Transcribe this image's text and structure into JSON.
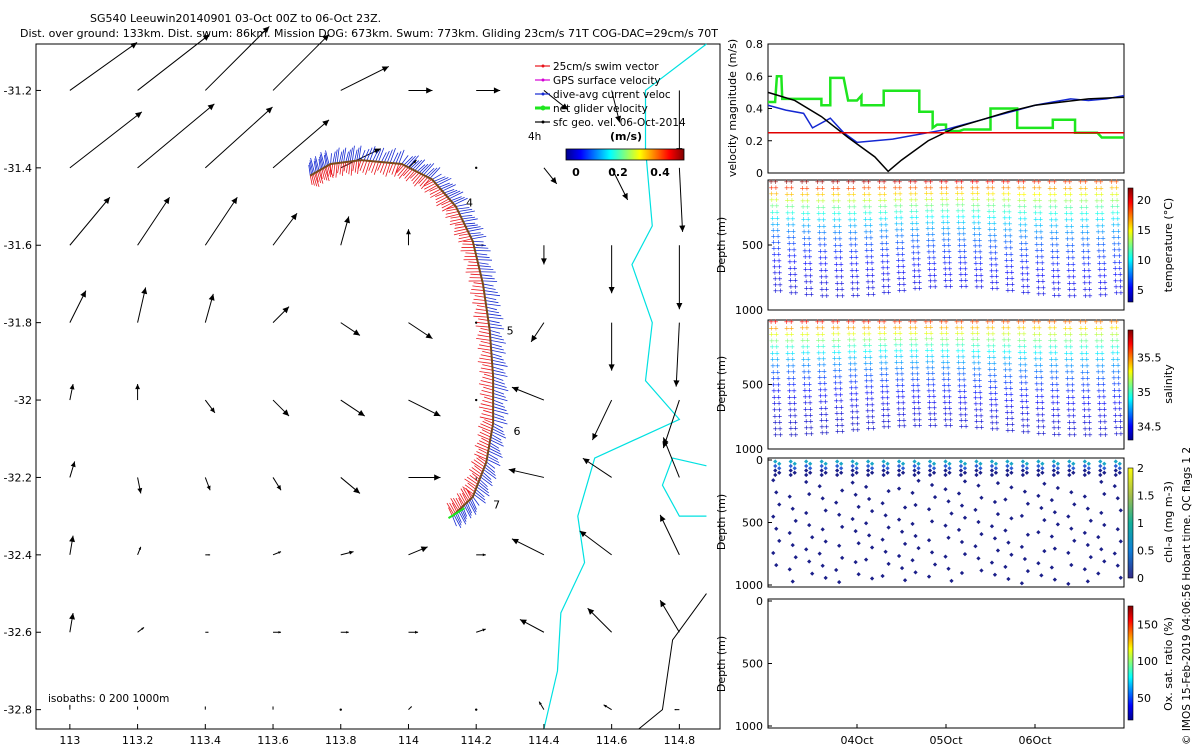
{
  "title": "SG540 Leeuwin20140901 03-Oct 00Z to 06-Oct 23Z.",
  "subtitle": "Dist. over ground: 133km. Dist. swum: 86km. Mission DOG: 673km. Swum: 773km. Gliding 23cm/s 71T COG-DAC=29cm/s 70T",
  "copyright": "© IMOS 15-Feb-2019 04:06:56 Hobart time. QC flags 1  2",
  "colors": {
    "swim": "#e8141b",
    "gps": "#d400d4",
    "dac": "#1428d2",
    "net": "#1ee61e",
    "geo": "#000000",
    "coast": "#00e1e1",
    "track": "#7a4a1a",
    "ref": "#e00000"
  },
  "chart_data": [
    {
      "type": "vector-map",
      "xlim": [
        112.9,
        114.92
      ],
      "ylim": [
        -32.85,
        -31.08
      ],
      "xticks": [
        113,
        113.2,
        113.4,
        113.6,
        113.8,
        114,
        114.2,
        114.4,
        114.6,
        114.8
      ],
      "xtick_labels": [
        "113",
        "113.2",
        "113.4",
        "113.6",
        "113.8",
        "114",
        "114.2",
        "114.4",
        "114.6",
        "114.8"
      ],
      "yticks": [
        -31.2,
        -31.4,
        -31.6,
        -31.8,
        -32,
        -32.2,
        -32.4,
        -32.6,
        -32.8
      ],
      "ytick_labels": [
        "-31.2",
        "-31.4",
        "-31.6",
        "-31.8",
        "-32",
        "-32.2",
        "-32.4",
        "-32.6",
        "-32.8"
      ],
      "legend": {
        "position": "top-right",
        "entries": [
          {
            "label": "25cm/s swim vector",
            "color": "#e8141b"
          },
          {
            "label": "GPS surface velocity",
            "color": "#d400d4"
          },
          {
            "label": "dive-avg current veloc",
            "color": "#1428d2"
          },
          {
            "label": "net glider velocity",
            "color": "#1ee61e"
          },
          {
            "label": "sfc geo. vel. 06-Oct-2014",
            "color": "#000000"
          }
        ]
      },
      "colorbar": {
        "label": "(m/s)",
        "ticks": [
          "0",
          "0.2",
          "0.4"
        ],
        "range": [
          0,
          0.5
        ]
      },
      "time_tag": "4h",
      "isobaths_label": "isobaths: 0   200  1000m",
      "track_day_labels": [
        "4",
        "5",
        "6",
        "7"
      ],
      "track_day_positions": [
        [
          114.17,
          -31.5
        ],
        [
          114.29,
          -31.83
        ],
        [
          114.31,
          -32.09
        ],
        [
          114.25,
          -32.28
        ]
      ],
      "track": [
        [
          113.71,
          -31.42
        ],
        [
          113.77,
          -31.39
        ],
        [
          113.86,
          -31.38
        ],
        [
          113.98,
          -31.39
        ],
        [
          114.07,
          -31.43
        ],
        [
          114.14,
          -31.5
        ],
        [
          114.19,
          -31.59
        ],
        [
          114.22,
          -31.7
        ],
        [
          114.24,
          -31.82
        ],
        [
          114.25,
          -31.94
        ],
        [
          114.25,
          -32.06
        ],
        [
          114.23,
          -32.16
        ],
        [
          114.19,
          -32.25
        ],
        [
          114.13,
          -32.3
        ]
      ],
      "geo_vectors": {
        "lons": [
          113.0,
          113.2,
          113.4,
          113.6,
          113.8,
          114.0,
          114.2,
          114.4,
          114.6,
          114.8
        ],
        "lats": [
          -31.2,
          -31.4,
          -31.6,
          -31.8,
          -32.0,
          -32.2,
          -32.4,
          -32.6,
          -32.8
        ],
        "u": [
          [
            0.42,
            0.45,
            0.4,
            0.35,
            0.3,
            0.15,
            0.15,
            0.15,
            0.05,
            0.0
          ],
          [
            0.45,
            0.48,
            0.42,
            0.35,
            0.25,
            0.05,
            0.0,
            0.08,
            0.1,
            0.02
          ],
          [
            0.25,
            0.2,
            0.2,
            0.15,
            0.05,
            0.0,
            0.05,
            0.0,
            0.0,
            0.0
          ],
          [
            0.1,
            0.05,
            0.05,
            0.1,
            0.12,
            0.15,
            0.0,
            -0.08,
            0.0,
            -0.02
          ],
          [
            0.02,
            0.0,
            0.06,
            0.1,
            0.15,
            0.2,
            0.0,
            -0.2,
            -0.12,
            -0.1
          ],
          [
            0.03,
            0.02,
            0.03,
            0.05,
            0.12,
            0.2,
            0.0,
            -0.22,
            -0.18,
            -0.1
          ],
          [
            0.02,
            0.02,
            0.03,
            0.05,
            0.08,
            0.12,
            0.06,
            -0.2,
            -0.2,
            -0.12
          ],
          [
            0.02,
            0.04,
            0.02,
            0.05,
            0.05,
            0.06,
            0.06,
            -0.15,
            -0.15,
            -0.12
          ],
          [
            0.0,
            0.0,
            0.0,
            0.0,
            0.0,
            0.02,
            0.0,
            -0.03,
            -0.05,
            -0.03
          ]
        ],
        "v": [
          [
            0.3,
            0.35,
            0.4,
            0.35,
            0.15,
            0.0,
            0.0,
            -0.12,
            -0.2,
            -0.4
          ],
          [
            0.35,
            0.4,
            0.38,
            0.3,
            0.12,
            0.05,
            0.0,
            -0.1,
            -0.2,
            -0.4
          ],
          [
            0.3,
            0.3,
            0.3,
            0.2,
            0.18,
            0.1,
            0.0,
            -0.12,
            -0.3,
            -0.4
          ],
          [
            0.2,
            0.22,
            0.18,
            0.1,
            -0.08,
            -0.1,
            0.0,
            -0.12,
            -0.3,
            -0.4
          ],
          [
            0.1,
            0.1,
            -0.08,
            -0.1,
            -0.1,
            -0.1,
            0.0,
            0.08,
            -0.25,
            -0.3
          ],
          [
            0.1,
            -0.1,
            -0.08,
            -0.08,
            -0.1,
            0.0,
            -0.02,
            0.05,
            0.12,
            0.25
          ],
          [
            0.12,
            0.05,
            0.0,
            0.02,
            0.02,
            0.05,
            0.0,
            0.1,
            0.15,
            0.25
          ],
          [
            0.12,
            0.03,
            0.0,
            0.0,
            0.0,
            0.0,
            0.02,
            0.08,
            0.15,
            0.2
          ],
          [
            0.03,
            0.02,
            0.02,
            0.02,
            0.0,
            0.02,
            0.0,
            0.05,
            0.03,
            0.0
          ]
        ]
      }
    },
    {
      "type": "line",
      "ylabel": "velocity magnitude (m/s)",
      "xlim": [
        0,
        4
      ],
      "ylim": [
        0,
        0.8
      ],
      "yticks": [
        0,
        0.2,
        0.4,
        0.6,
        0.8
      ],
      "ytick_labels": [
        "0",
        "0.2",
        "0.4",
        "0.6",
        "0.8"
      ],
      "series": [
        {
          "name": "net glider velocity",
          "color": "#1ee61e",
          "x": [
            0,
            0.08,
            0.1,
            0.15,
            0.16,
            0.6,
            0.6,
            0.7,
            0.7,
            0.85,
            0.9,
            1.0,
            1.05,
            1.05,
            1.3,
            1.3,
            1.5,
            1.7,
            1.7,
            1.85,
            1.85,
            1.9,
            1.95,
            2.0,
            2.0,
            2.15,
            2.2,
            2.5,
            2.5,
            2.8,
            2.8,
            3.0,
            3.2,
            3.2,
            3.45,
            3.45,
            3.7,
            3.75,
            4.0
          ],
          "y": [
            0.44,
            0.44,
            0.6,
            0.6,
            0.46,
            0.46,
            0.42,
            0.42,
            0.59,
            0.59,
            0.45,
            0.45,
            0.48,
            0.42,
            0.42,
            0.51,
            0.51,
            0.51,
            0.38,
            0.38,
            0.28,
            0.3,
            0.3,
            0.3,
            0.26,
            0.26,
            0.27,
            0.27,
            0.4,
            0.4,
            0.28,
            0.28,
            0.28,
            0.33,
            0.33,
            0.25,
            0.25,
            0.22,
            0.22
          ]
        },
        {
          "name": "dive-avg current veloc",
          "color": "#1428d2",
          "x": [
            0,
            0.2,
            0.4,
            0.5,
            0.7,
            0.85,
            1.0,
            1.2,
            1.4,
            1.6,
            1.8,
            2.0,
            2.2,
            2.4,
            2.6,
            2.8,
            3.0,
            3.2,
            3.4,
            3.6,
            3.8,
            4.0
          ],
          "y": [
            0.42,
            0.39,
            0.37,
            0.28,
            0.34,
            0.25,
            0.19,
            0.2,
            0.21,
            0.23,
            0.25,
            0.27,
            0.3,
            0.33,
            0.36,
            0.39,
            0.42,
            0.44,
            0.46,
            0.45,
            0.46,
            0.48
          ]
        },
        {
          "name": "sfc geo. vel.",
          "color": "#000000",
          "x": [
            0,
            0.3,
            0.6,
            0.9,
            1.2,
            1.35,
            1.5,
            1.8,
            2.1,
            2.4,
            2.7,
            3.0,
            3.3,
            3.6,
            4.0
          ],
          "y": [
            0.5,
            0.45,
            0.35,
            0.22,
            0.1,
            0.01,
            0.08,
            0.2,
            0.28,
            0.33,
            0.38,
            0.42,
            0.44,
            0.46,
            0.47
          ]
        },
        {
          "name": "25cm/s",
          "color": "#e00000",
          "x": [
            0,
            4
          ],
          "y": [
            0.25,
            0.25
          ]
        }
      ]
    },
    {
      "type": "scatter-profile",
      "ylabel": "Depth (m)",
      "clabel": "temperature (°C)",
      "ylim": [
        1000,
        0
      ],
      "yticks": [
        500,
        1000
      ],
      "ytick_labels": [
        "500",
        "1000"
      ],
      "cticks": [
        "5",
        "10",
        "15",
        "20"
      ],
      "crange": [
        3,
        22
      ],
      "surface": [
        22,
        18
      ],
      "deep": 4
    },
    {
      "type": "scatter-profile",
      "ylabel": "Depth (m)",
      "clabel": "salinity",
      "ylim": [
        1000,
        0
      ],
      "yticks": [
        500,
        1000
      ],
      "ytick_labels": [
        "500",
        "1000"
      ],
      "cticks": [
        "34.5",
        "35",
        "35.5"
      ],
      "crange": [
        34.3,
        35.9
      ],
      "surface": [
        35.7,
        35.5
      ],
      "deep": 34.35
    },
    {
      "type": "scatter-profile",
      "ylabel": "Depth (m)",
      "clabel": "chl-a (mg m-3)",
      "ylim": [
        1000,
        0
      ],
      "yticks": [
        0,
        500,
        1000
      ],
      "ytick_labels": [
        "0",
        "500",
        "1000"
      ],
      "cticks": [
        "0",
        "0.5",
        "1",
        "1.5",
        "2"
      ],
      "crange": [
        0,
        2
      ]
    },
    {
      "type": "scatter-profile",
      "ylabel": "Depth (m)",
      "clabel": "Ox. sat. ratio (%)",
      "ylim": [
        1000,
        0
      ],
      "yticks": [
        0,
        500,
        1000
      ],
      "ytick_labels": [
        "0",
        "500",
        "1000"
      ],
      "cticks": [
        "50",
        "100",
        "150"
      ],
      "crange": [
        20,
        175
      ],
      "xticks": [
        1,
        2,
        3
      ],
      "xtick_labels": [
        "04Oct",
        "05Oct",
        "06Oct"
      ],
      "xlim": [
        0,
        4
      ]
    }
  ]
}
